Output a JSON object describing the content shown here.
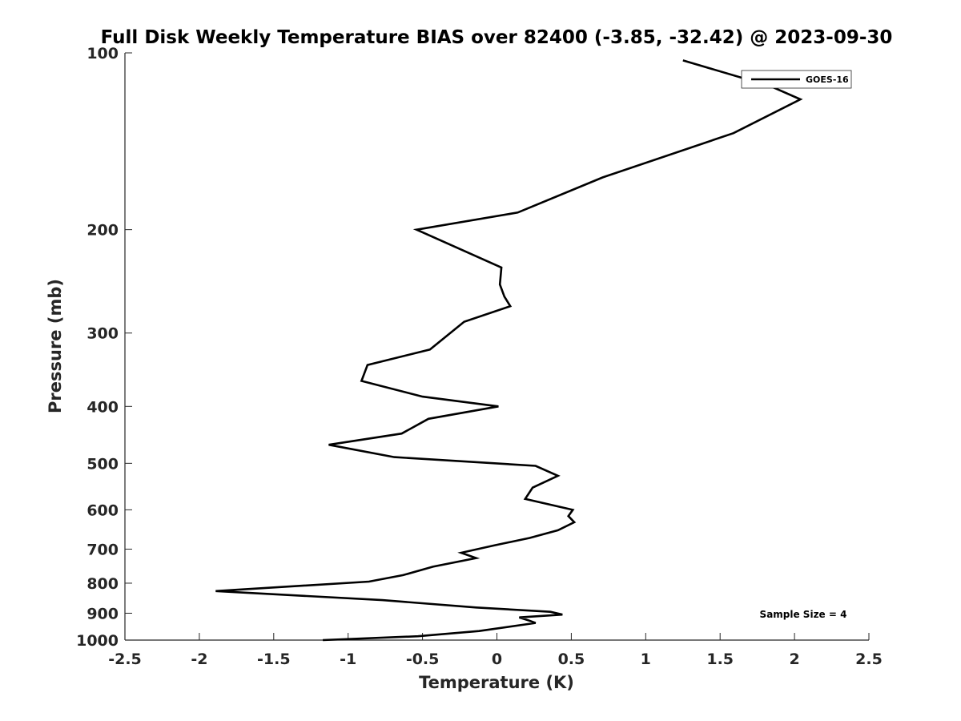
{
  "chart_data": {
    "type": "line",
    "title": "Full Disk Weekly Temperature BIAS over 82400 (-3.85, -32.42) @ 2023-09-30",
    "xlabel": "Temperature (K)",
    "ylabel": "Pressure (mb)",
    "xlim": [
      -2.5,
      2.5
    ],
    "ylim": [
      100,
      1000
    ],
    "y_scale": "log",
    "y_reversed": true,
    "x_ticks": [
      -2.5,
      -2,
      -1.5,
      -1,
      -0.5,
      0,
      0.5,
      1,
      1.5,
      2,
      2.5
    ],
    "x_tick_labels": [
      "-2.5",
      "-2",
      "-1.5",
      "-1",
      "-0.5",
      "0",
      "0.5",
      "1",
      "1.5",
      "2",
      "2.5"
    ],
    "y_ticks": [
      100,
      200,
      300,
      400,
      500,
      600,
      700,
      800,
      900,
      1000
    ],
    "y_tick_labels": [
      "100",
      "200",
      "300",
      "400",
      "500",
      "600",
      "700",
      "800",
      "900",
      "1000"
    ],
    "grid": false,
    "legend_position": "top-right",
    "series": [
      {
        "name": "GOES-16",
        "color": "#000000",
        "x": [
          1.25,
          1.84,
          2.04,
          1.59,
          0.71,
          0.14,
          -0.54,
          0.03,
          0.02,
          0.05,
          0.09,
          -0.22,
          -0.45,
          -0.87,
          -0.91,
          -0.5,
          0.01,
          -0.46,
          -0.64,
          -1.13,
          -0.69,
          0.26,
          0.41,
          0.24,
          0.19,
          0.51,
          0.48,
          0.52,
          0.41,
          0.22,
          -0.02,
          -0.24,
          -0.14,
          -0.43,
          -0.63,
          -0.86,
          -1.89,
          -0.77,
          -0.14,
          0.36,
          0.44,
          0.15,
          0.21,
          0.26,
          -0.12,
          -0.53,
          -1.17
        ],
        "y": [
          103,
          114,
          120,
          137,
          163,
          187,
          200,
          232,
          248,
          260,
          270,
          287,
          320,
          340,
          362,
          385,
          400,
          420,
          445,
          465,
          488,
          505,
          525,
          550,
          575,
          600,
          615,
          630,
          650,
          670,
          690,
          710,
          725,
          750,
          775,
          795,
          825,
          855,
          880,
          895,
          905,
          915,
          925,
          935,
          965,
          985,
          1000
        ]
      }
    ],
    "annotations": [
      "Sample Size = 4"
    ]
  }
}
